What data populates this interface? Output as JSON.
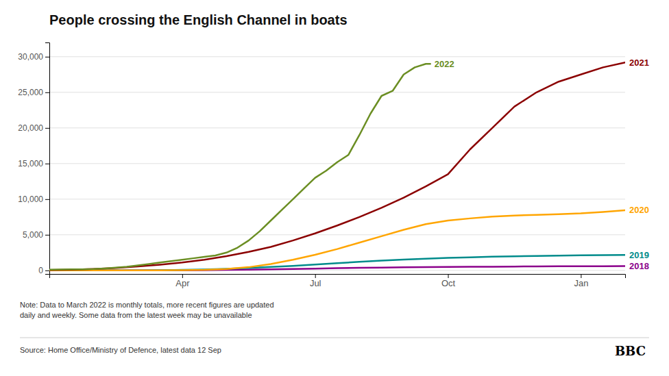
{
  "chart_data": {
    "type": "line",
    "title": "People crossing the English Channel in boats",
    "annotations": [
      "Note: Data to March 2022 is monthly totals, more recent figures are updated\ndaily and weekly. Some data from the latest week may be unavailable",
      "Source: Home Office/Ministry of Defence, latest data 12 Sep",
      "BBC"
    ],
    "xlim": [
      0,
      13
    ],
    "xticks": [
      {
        "value": 3,
        "label": "Apr"
      },
      {
        "value": 6,
        "label": "Jul"
      },
      {
        "value": 9,
        "label": "Oct"
      },
      {
        "value": 12,
        "label": "Jan"
      }
    ],
    "ylim": [
      -500,
      32000
    ],
    "yticks": [
      0,
      {
        "value": 5000,
        "label": "5,000"
      },
      {
        "value": 10000,
        "label": "10,000"
      },
      {
        "value": 15000,
        "label": "15,000"
      },
      {
        "value": 20000,
        "label": "20,000"
      },
      {
        "value": 25000,
        "label": "25,000"
      },
      {
        "value": 30000,
        "label": "30,000"
      }
    ],
    "grid": true,
    "series": [
      {
        "name": "2018",
        "color": "#8b008b",
        "x": [
          0.0,
          0.5,
          1.0,
          1.5,
          2.0,
          2.5,
          3.0,
          3.5,
          4.0,
          4.5,
          5.0,
          5.5,
          6.0,
          6.5,
          7.0,
          7.5,
          8.0,
          8.5,
          9.0,
          9.5,
          10.0,
          10.5,
          11.0,
          11.5,
          12.0,
          12.5,
          13.0
        ],
        "values": [
          0,
          0,
          0,
          0,
          0,
          5,
          15,
          35,
          65,
          105,
          150,
          200,
          255,
          310,
          360,
          400,
          435,
          460,
          480,
          500,
          520,
          540,
          560,
          575,
          585,
          592,
          598
        ]
      },
      {
        "name": "2019",
        "color": "#008b8b",
        "x": [
          0.0,
          0.5,
          1.0,
          1.5,
          2.0,
          2.5,
          3.0,
          3.5,
          4.0,
          4.5,
          5.0,
          5.5,
          6.0,
          6.5,
          7.0,
          7.5,
          8.0,
          8.5,
          9.0,
          9.5,
          10.0,
          10.5,
          11.0,
          11.5,
          12.0,
          12.5,
          13.0
        ],
        "values": [
          0,
          0,
          0,
          5,
          15,
          35,
          70,
          130,
          220,
          340,
          480,
          640,
          820,
          1010,
          1200,
          1380,
          1530,
          1650,
          1750,
          1840,
          1920,
          1980,
          2030,
          2070,
          2110,
          2150,
          2180
        ]
      },
      {
        "name": "2020",
        "color": "#ffa500",
        "x": [
          0.0,
          0.5,
          1.0,
          1.5,
          2.0,
          2.5,
          3.0,
          3.5,
          4.0,
          4.5,
          5.0,
          5.5,
          6.0,
          6.5,
          7.0,
          7.5,
          8.0,
          8.5,
          9.0,
          9.5,
          10.0,
          10.5,
          11.0,
          11.5,
          12.0,
          12.5,
          13.0
        ],
        "values": [
          0,
          0,
          0,
          0,
          0,
          10,
          30,
          80,
          200,
          450,
          900,
          1500,
          2200,
          3000,
          3900,
          4800,
          5700,
          6500,
          7000,
          7300,
          7550,
          7700,
          7800,
          7900,
          8000,
          8200,
          8450
        ]
      },
      {
        "name": "2021",
        "color": "#8b0000",
        "x": [
          0.0,
          0.5,
          1.0,
          1.5,
          2.0,
          2.5,
          3.0,
          3.5,
          4.0,
          4.5,
          5.0,
          5.5,
          6.0,
          6.5,
          7.0,
          7.5,
          8.0,
          8.5,
          9.0,
          9.5,
          10.0,
          10.5,
          11.0,
          11.5,
          12.0,
          12.5,
          13.0
        ],
        "values": [
          50,
          100,
          200,
          350,
          550,
          800,
          1100,
          1500,
          2000,
          2600,
          3300,
          4200,
          5200,
          6300,
          7500,
          8800,
          10200,
          11800,
          13500,
          17000,
          20000,
          23000,
          25000,
          26500,
          27500,
          28500,
          29200
        ]
      },
      {
        "name": "2022",
        "color": "#6b8e23",
        "x": [
          0.0,
          0.25,
          0.5,
          0.75,
          1.0,
          1.25,
          1.5,
          1.75,
          2.0,
          2.25,
          2.5,
          2.75,
          3.0,
          3.25,
          3.5,
          3.75,
          4.0,
          4.25,
          4.5,
          4.75,
          5.0,
          5.25,
          5.5,
          5.75,
          6.0,
          6.25,
          6.5,
          6.75,
          7.0,
          7.25,
          7.5,
          7.75,
          8.0,
          8.25,
          8.5,
          8.6
        ],
        "values": [
          100,
          120,
          140,
          160,
          200,
          280,
          380,
          500,
          700,
          900,
          1100,
          1300,
          1500,
          1700,
          1900,
          2100,
          2500,
          3200,
          4200,
          5500,
          7000,
          8500,
          10000,
          11500,
          13000,
          14000,
          15200,
          16200,
          19000,
          22000,
          24500,
          25200,
          27500,
          28500,
          29000,
          29000
        ]
      }
    ]
  }
}
